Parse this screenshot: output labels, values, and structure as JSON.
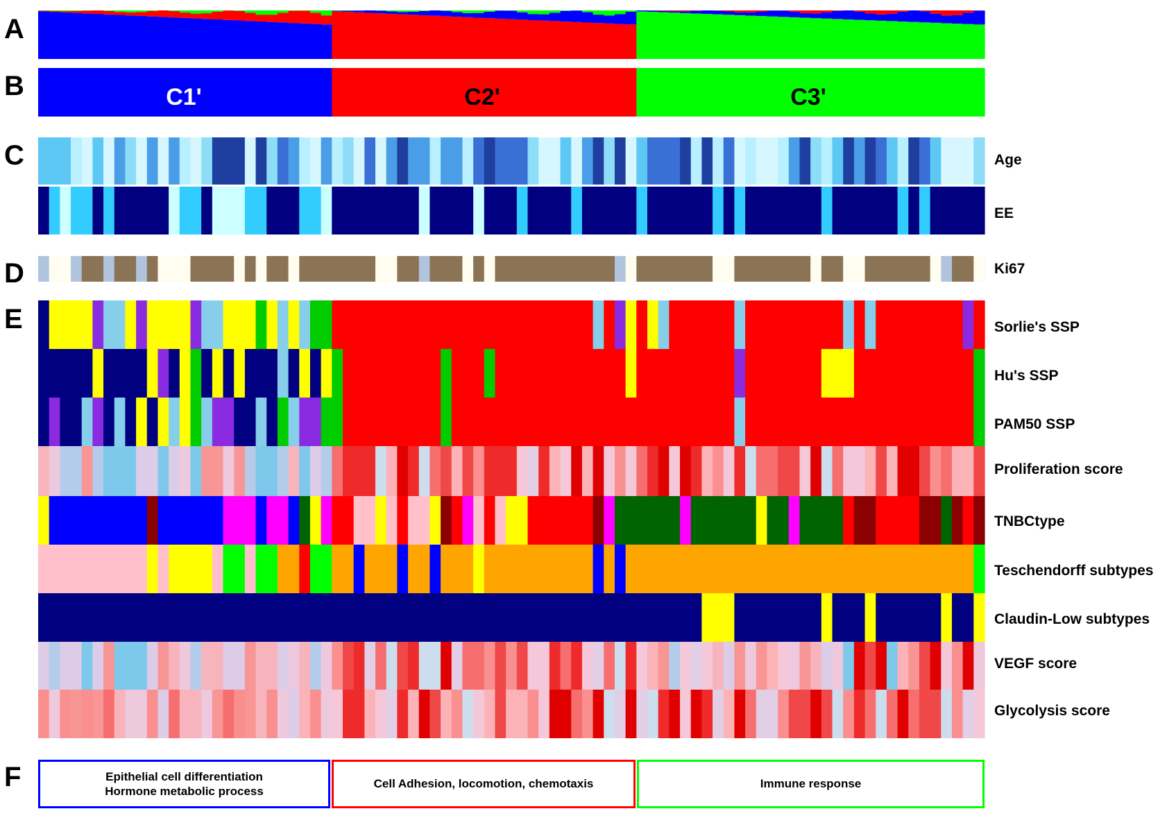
{
  "panel_letters": [
    "A",
    "B",
    "C",
    "D",
    "E",
    "F"
  ],
  "clusters": [
    {
      "label": "C1'",
      "color": "#0000ff",
      "label_color": "#ffffff",
      "samples": 27
    },
    {
      "label": "C2'",
      "color": "#ff0000",
      "label_color": "#000000",
      "samples": 28
    },
    {
      "label": "C3'",
      "color": "#00ff00",
      "label_color": "#000000",
      "samples": 32
    }
  ],
  "total_samples": 87,
  "row_labels": {
    "age": "Age",
    "ee": "EE",
    "ki67": "Ki67",
    "sorlie": "Sorlie's SSP",
    "hu": "Hu's SSP",
    "pam50": "PAM50 SSP",
    "proliferation": "Proliferation score",
    "tnbc": "TNBCtype",
    "teschendorff": "Teschendorff subtypes",
    "claudin": "Claudin-Low subtypes",
    "vegf": "VEGF score",
    "glycolysis": "Glycolysis score"
  },
  "functions": [
    {
      "text": "Epithelial cell differentiation\nHormone metabolic process",
      "border": "#0000ff"
    },
    {
      "text": "Cell Adhesion, locomotion, chemotaxis",
      "border": "#ff0000"
    },
    {
      "text": "Immune response",
      "border": "#00ff00"
    }
  ],
  "colors": {
    "dark_blue": "#000080",
    "sky_blue": "#33ccff",
    "pale_cyan": "#ccffff",
    "yellow": "#ffff00",
    "light_blue": "#87ceeb",
    "purple": "#8a2be2",
    "green": "#00cc00",
    "red": "#ff0000",
    "pink": "#ffc0cb",
    "magenta": "#ff00ff",
    "dark_red": "#8b0000",
    "dark_green": "#006400",
    "orange": "#ffa500",
    "bright_green": "#00ff00",
    "blue": "#0000ff",
    "tan": "#8b7355",
    "cream": "#fffdf0",
    "lavender": "#b0c4de"
  },
  "tracks": {
    "ee": [
      "D",
      "S",
      "C",
      "S",
      "S",
      "D",
      "S",
      "D",
      "D",
      "D",
      "D",
      "D",
      "C",
      "S",
      "S",
      "D",
      "C",
      "C",
      "C",
      "S",
      "S",
      "D",
      "D",
      "D",
      "S",
      "S",
      "C",
      "D",
      "D",
      "D",
      "D",
      "D",
      "D",
      "D",
      "D",
      "C",
      "D",
      "D",
      "D",
      "D",
      "C",
      "D",
      "D",
      "D",
      "S",
      "D",
      "D",
      "D",
      "D",
      "S",
      "D",
      "D",
      "D",
      "D",
      "D",
      "S",
      "D",
      "D",
      "D",
      "D",
      "D",
      "D",
      "S",
      "D",
      "S",
      "D",
      "D",
      "D",
      "D",
      "D",
      "D",
      "D",
      "S",
      "D",
      "D",
      "D",
      "D",
      "D",
      "D",
      "S",
      "D",
      "S",
      "D",
      "D",
      "D",
      "D",
      "D"
    ],
    "ki67": [
      "L",
      "W",
      "W",
      "L",
      "T",
      "T",
      "L",
      "T",
      "T",
      "L",
      "T",
      "W",
      "W",
      "W",
      "T",
      "T",
      "T",
      "T",
      "W",
      "T",
      "W",
      "T",
      "T",
      "W",
      "T",
      "T",
      "T",
      "T",
      "T",
      "T",
      "T",
      "W",
      "W",
      "T",
      "T",
      "L",
      "T",
      "T",
      "T",
      "W",
      "T",
      "W",
      "T",
      "T",
      "T",
      "T",
      "T",
      "T",
      "T",
      "T",
      "T",
      "T",
      "T",
      "L",
      "W",
      "T",
      "T",
      "T",
      "T",
      "T",
      "T",
      "T",
      "W",
      "W",
      "T",
      "T",
      "T",
      "T",
      "T",
      "T",
      "T",
      "W",
      "T",
      "T",
      "W",
      "W",
      "T",
      "T",
      "T",
      "T",
      "T",
      "T",
      "W",
      "L",
      "T",
      "T",
      "W"
    ],
    "sorlie": [
      "D",
      "Y",
      "Y",
      "Y",
      "Y",
      "P",
      "L",
      "L",
      "Y",
      "P",
      "Y",
      "Y",
      "Y",
      "Y",
      "P",
      "L",
      "L",
      "Y",
      "Y",
      "Y",
      "G",
      "Y",
      "L",
      "Y",
      "L",
      "G",
      "G",
      "R",
      "R",
      "R",
      "R",
      "R",
      "R",
      "R",
      "R",
      "R",
      "R",
      "R",
      "R",
      "R",
      "R",
      "R",
      "R",
      "R",
      "R",
      "R",
      "R",
      "R",
      "R",
      "R",
      "R",
      "L",
      "R",
      "P",
      "Y",
      "R",
      "Y",
      "L",
      "R",
      "R",
      "R",
      "R",
      "R",
      "R",
      "L",
      "R",
      "R",
      "R",
      "R",
      "R",
      "R",
      "R",
      "R",
      "R",
      "L",
      "R",
      "L",
      "R",
      "R",
      "R",
      "R",
      "R",
      "R",
      "R",
      "R",
      "P",
      "R"
    ],
    "hu": [
      "D",
      "D",
      "D",
      "D",
      "D",
      "Y",
      "D",
      "D",
      "D",
      "D",
      "Y",
      "P",
      "D",
      "Y",
      "G",
      "D",
      "Y",
      "D",
      "Y",
      "D",
      "D",
      "D",
      "L",
      "D",
      "Y",
      "D",
      "Y",
      "G",
      "R",
      "R",
      "R",
      "R",
      "R",
      "R",
      "R",
      "R",
      "R",
      "G",
      "R",
      "R",
      "R",
      "G",
      "R",
      "R",
      "R",
      "R",
      "R",
      "R",
      "R",
      "R",
      "R",
      "R",
      "R",
      "R",
      "Y",
      "R",
      "R",
      "R",
      "R",
      "R",
      "R",
      "R",
      "R",
      "R",
      "P",
      "R",
      "R",
      "R",
      "R",
      "R",
      "R",
      "R",
      "Y",
      "Y",
      "Y",
      "R",
      "R",
      "R",
      "R",
      "R",
      "R",
      "R",
      "R",
      "R",
      "R",
      "R",
      "G"
    ],
    "pam50": [
      "D",
      "P",
      "D",
      "D",
      "L",
      "P",
      "D",
      "L",
      "D",
      "Y",
      "D",
      "Y",
      "L",
      "Y",
      "G",
      "L",
      "P",
      "P",
      "D",
      "D",
      "L",
      "D",
      "G",
      "L",
      "P",
      "P",
      "G",
      "G",
      "R",
      "R",
      "R",
      "R",
      "R",
      "R",
      "R",
      "R",
      "R",
      "G",
      "R",
      "R",
      "R",
      "R",
      "R",
      "R",
      "R",
      "R",
      "R",
      "R",
      "R",
      "R",
      "R",
      "R",
      "R",
      "R",
      "R",
      "R",
      "R",
      "R",
      "R",
      "R",
      "R",
      "R",
      "R",
      "R",
      "L",
      "R",
      "R",
      "R",
      "R",
      "R",
      "R",
      "R",
      "R",
      "R",
      "R",
      "R",
      "R",
      "R",
      "R",
      "R",
      "R",
      "R",
      "R",
      "R",
      "R",
      "R",
      "G"
    ],
    "tnbc": [
      "Y",
      "B",
      "B",
      "B",
      "B",
      "B",
      "B",
      "B",
      "B",
      "B",
      "K",
      "B",
      "B",
      "B",
      "B",
      "B",
      "B",
      "M",
      "M",
      "M",
      "B",
      "M",
      "M",
      "B",
      "G",
      "Y",
      "M",
      "R",
      "R",
      "N",
      "N",
      "Y",
      "N",
      "R",
      "N",
      "N",
      "Y",
      "K",
      "R",
      "M",
      "N",
      "R",
      "N",
      "Y",
      "Y",
      "R",
      "R",
      "R",
      "R",
      "R",
      "R",
      "K",
      "M",
      "G",
      "G",
      "G",
      "G",
      "G",
      "G",
      "M",
      "G",
      "G",
      "G",
      "G",
      "G",
      "G",
      "Y",
      "G",
      "G",
      "M",
      "G",
      "G",
      "G",
      "G",
      "R",
      "K",
      "K",
      "R",
      "R",
      "R",
      "R",
      "K",
      "K",
      "G",
      "K",
      "R",
      "K"
    ],
    "teschendorff": [
      "P",
      "P",
      "P",
      "P",
      "P",
      "P",
      "P",
      "P",
      "P",
      "P",
      "Y",
      "P",
      "Y",
      "Y",
      "Y",
      "Y",
      "P",
      "G",
      "G",
      "P",
      "G",
      "G",
      "O",
      "O",
      "R",
      "G",
      "G",
      "O",
      "O",
      "B",
      "O",
      "O",
      "O",
      "B",
      "O",
      "O",
      "B",
      "O",
      "O",
      "O",
      "Y",
      "O",
      "O",
      "O",
      "O",
      "O",
      "O",
      "O",
      "O",
      "O",
      "O",
      "B",
      "O",
      "B",
      "O",
      "O",
      "O",
      "O",
      "O",
      "O",
      "O",
      "O",
      "O",
      "O",
      "O",
      "O",
      "O",
      "O",
      "O",
      "O",
      "O",
      "O",
      "O",
      "O",
      "O",
      "O",
      "O",
      "O",
      "O",
      "O",
      "O",
      "O",
      "O",
      "O",
      "O",
      "O",
      "G"
    ],
    "claudin": [
      "D",
      "D",
      "D",
      "D",
      "D",
      "D",
      "D",
      "D",
      "D",
      "D",
      "D",
      "D",
      "D",
      "D",
      "D",
      "D",
      "D",
      "D",
      "D",
      "D",
      "D",
      "D",
      "D",
      "D",
      "D",
      "D",
      "D",
      "D",
      "D",
      "D",
      "D",
      "D",
      "D",
      "D",
      "D",
      "D",
      "D",
      "D",
      "D",
      "D",
      "D",
      "D",
      "D",
      "D",
      "D",
      "D",
      "D",
      "D",
      "D",
      "D",
      "D",
      "D",
      "D",
      "D",
      "D",
      "D",
      "D",
      "D",
      "D",
      "D",
      "D",
      "Y",
      "Y",
      "Y",
      "D",
      "D",
      "D",
      "D",
      "D",
      "D",
      "D",
      "D",
      "Y",
      "D",
      "D",
      "D",
      "Y",
      "D",
      "D",
      "D",
      "D",
      "D",
      "D",
      "Y",
      "D",
      "D",
      "Y"
    ]
  }
}
